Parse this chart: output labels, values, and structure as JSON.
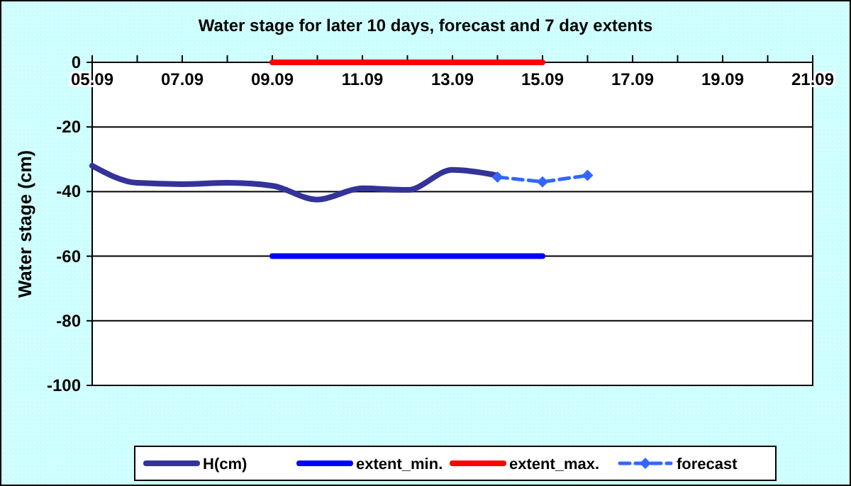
{
  "chart_data": {
    "type": "line",
    "title": "Water stage for later 10 days, forecast and 7 day extents",
    "ylabel": "Water stage (cm)",
    "xlim": [
      "--09-05",
      "--09-21"
    ],
    "xticks": [
      {
        "value": "--09-05",
        "label": "05.09"
      },
      {
        "value": "--09-07",
        "label": "07.09"
      },
      {
        "value": "--09-09",
        "label": "09.09"
      },
      {
        "value": "--09-11",
        "label": "11.09"
      },
      {
        "value": "--09-13",
        "label": "13.09"
      },
      {
        "value": "--09-15",
        "label": "15.09"
      },
      {
        "value": "--09-17",
        "label": "17.09"
      },
      {
        "value": "--09-19",
        "label": "19.09"
      },
      {
        "value": "--09-21",
        "label": "21.09"
      }
    ],
    "ylim": [
      -100,
      0
    ],
    "yticks": [
      -100,
      -80,
      -60,
      -40,
      -20,
      0
    ],
    "grid": "y",
    "legend": "bottom",
    "series": [
      {
        "name": "H(cm)",
        "color": "#333399",
        "x": [
          "--09-05",
          "--09-06",
          "--09-07",
          "--09-08",
          "--09-09",
          "--09-10",
          "--09-11",
          "--09-12",
          "--09-13",
          "--09-14"
        ],
        "values": [
          -32,
          -37.3,
          -37.7,
          -37.3,
          -38.2,
          -42.5,
          -39,
          -39.5,
          -33.3,
          -35
        ],
        "marker": "none",
        "line_style": "solid"
      },
      {
        "name": "extent_min.",
        "color": "#0000ff",
        "x": [
          "--09-09",
          "--09-15"
        ],
        "values": [
          -60,
          -60
        ],
        "marker": "none",
        "line_style": "solid"
      },
      {
        "name": "extent_max.",
        "color": "#ff0000",
        "x": [
          "--09-09",
          "--09-15"
        ],
        "values": [
          0,
          0
        ],
        "marker": "none",
        "line_style": "solid"
      },
      {
        "name": "forecast",
        "color": "#3366ff",
        "x": [
          "--09-14",
          "--09-15",
          "--09-16"
        ],
        "values": [
          -35.5,
          -37,
          -35
        ],
        "marker": "diamond",
        "line_style": "dashed"
      }
    ]
  }
}
